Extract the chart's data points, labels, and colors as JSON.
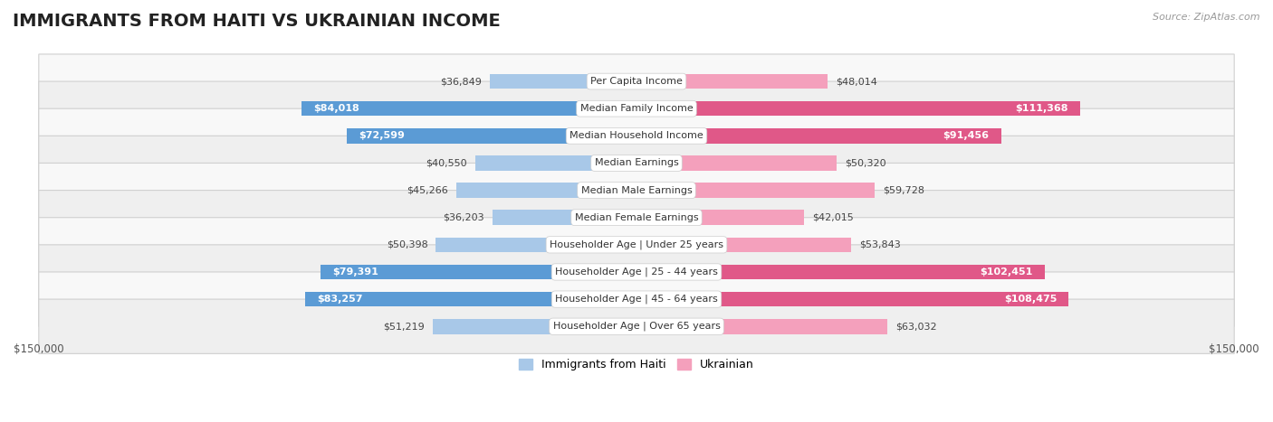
{
  "title": "IMMIGRANTS FROM HAITI VS UKRAINIAN INCOME",
  "source": "Source: ZipAtlas.com",
  "categories": [
    "Per Capita Income",
    "Median Family Income",
    "Median Household Income",
    "Median Earnings",
    "Median Male Earnings",
    "Median Female Earnings",
    "Householder Age | Under 25 years",
    "Householder Age | 25 - 44 years",
    "Householder Age | 45 - 64 years",
    "Householder Age | Over 65 years"
  ],
  "haiti_values": [
    36849,
    84018,
    72599,
    40550,
    45266,
    36203,
    50398,
    79391,
    83257,
    51219
  ],
  "ukrainian_values": [
    48014,
    111368,
    91456,
    50320,
    59728,
    42015,
    53843,
    102451,
    108475,
    63032
  ],
  "haiti_light_color": "#a8c8e8",
  "haiti_dark_color": "#5b9bd5",
  "ukrainian_light_color": "#f4a0bc",
  "ukrainian_dark_color": "#e05888",
  "max_value": 150000,
  "title_fontsize": 14,
  "label_fontsize": 8,
  "value_fontsize": 8,
  "legend_fontsize": 9,
  "inside_label_threshold": 65000,
  "row_colors": [
    "#f8f8f8",
    "#efefef"
  ]
}
